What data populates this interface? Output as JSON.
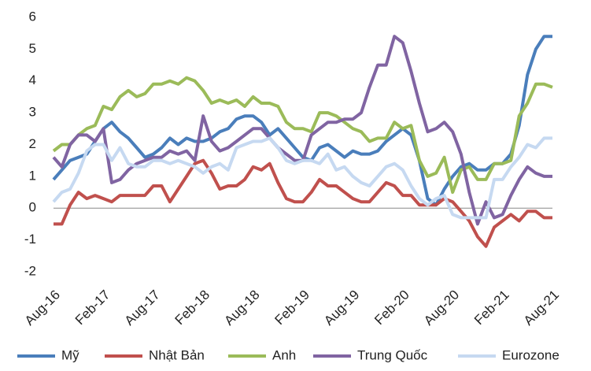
{
  "chart_data": {
    "type": "line",
    "categories": [
      "Aug-16",
      null,
      null,
      null,
      null,
      null,
      "Feb-17",
      null,
      null,
      null,
      null,
      null,
      "Aug-17",
      null,
      null,
      null,
      null,
      null,
      "Feb-18",
      null,
      null,
      null,
      null,
      null,
      "Aug-18",
      null,
      null,
      null,
      null,
      null,
      "Feb-19",
      null,
      null,
      null,
      null,
      null,
      "Aug-19",
      null,
      null,
      null,
      null,
      null,
      "Feb-20",
      null,
      null,
      null,
      null,
      null,
      "Aug-20",
      null,
      null,
      null,
      null,
      null,
      "Feb-21",
      null,
      null,
      null,
      null,
      null,
      "Aug-21"
    ],
    "ylim": [
      -2,
      6
    ],
    "yticks": [
      -2,
      -1,
      0,
      1,
      2,
      3,
      4,
      5,
      6
    ],
    "grid": false,
    "legend": "bottom",
    "series": [
      {
        "name": "Mỹ",
        "color": "#4a7ebb",
        "values": [
          0.9,
          1.2,
          1.5,
          1.6,
          1.7,
          2.1,
          2.5,
          2.7,
          2.4,
          2.2,
          1.9,
          1.6,
          1.7,
          1.9,
          2.2,
          2.0,
          2.2,
          2.1,
          2.1,
          2.2,
          2.4,
          2.5,
          2.8,
          2.9,
          2.9,
          2.7,
          2.3,
          2.5,
          2.2,
          1.9,
          1.6,
          1.5,
          1.9,
          2.0,
          1.8,
          1.6,
          1.8,
          1.7,
          1.7,
          1.8,
          2.1,
          2.3,
          2.5,
          2.3,
          1.5,
          0.3,
          0.1,
          0.6,
          1.0,
          1.3,
          1.4,
          1.2,
          1.2,
          1.4,
          1.4,
          1.7,
          2.6,
          4.2,
          5.0,
          5.4,
          5.4
        ]
      },
      {
        "name": "Nhật Bản",
        "color": "#c0504d",
        "values": [
          -0.5,
          -0.5,
          0.1,
          0.5,
          0.3,
          0.4,
          0.3,
          0.2,
          0.4,
          0.4,
          0.4,
          0.4,
          0.7,
          0.7,
          0.2,
          0.6,
          1.0,
          1.4,
          1.5,
          1.1,
          0.6,
          0.7,
          0.7,
          0.9,
          1.3,
          1.2,
          1.4,
          0.8,
          0.3,
          0.2,
          0.2,
          0.5,
          0.9,
          0.7,
          0.7,
          0.5,
          0.3,
          0.2,
          0.2,
          0.5,
          0.8,
          0.7,
          0.4,
          0.4,
          0.1,
          0.1,
          0.1,
          0.3,
          0.2,
          -0.1,
          -0.4,
          -0.9,
          -1.2,
          -0.6,
          -0.4,
          -0.2,
          -0.4,
          -0.1,
          -0.1,
          -0.3,
          -0.3
        ]
      },
      {
        "name": "Anh",
        "color": "#9bbb59",
        "values": [
          1.8,
          2.0,
          2.0,
          2.3,
          2.5,
          2.6,
          3.2,
          3.1,
          3.5,
          3.7,
          3.5,
          3.6,
          3.9,
          3.9,
          4.0,
          3.9,
          4.1,
          4.0,
          3.7,
          3.3,
          3.4,
          3.3,
          3.4,
          3.2,
          3.5,
          3.3,
          3.3,
          3.2,
          2.7,
          2.5,
          2.5,
          2.4,
          3.0,
          3.0,
          2.9,
          2.7,
          2.5,
          2.4,
          2.1,
          2.2,
          2.2,
          2.7,
          2.5,
          2.6,
          1.5,
          1.0,
          1.1,
          1.6,
          0.5,
          1.2,
          1.3,
          0.9,
          0.9,
          1.4,
          1.4,
          1.5,
          2.9,
          3.3,
          3.9,
          3.9,
          3.8
        ]
      },
      {
        "name": "Trung Quốc",
        "color": "#8064a2",
        "values": [
          1.6,
          1.3,
          2.0,
          2.3,
          2.3,
          2.1,
          2.5,
          0.8,
          0.9,
          1.2,
          1.4,
          1.5,
          1.6,
          1.6,
          1.8,
          1.7,
          1.8,
          1.5,
          2.9,
          2.1,
          1.8,
          1.9,
          2.1,
          2.3,
          2.5,
          2.5,
          2.2,
          1.9,
          1.7,
          1.5,
          1.5,
          2.3,
          2.5,
          2.7,
          2.7,
          2.8,
          2.8,
          3.0,
          3.8,
          4.5,
          4.5,
          5.4,
          5.2,
          4.3,
          3.3,
          2.4,
          2.5,
          2.7,
          2.4,
          1.7,
          0.5,
          -0.5,
          0.2,
          -0.3,
          -0.2,
          0.4,
          0.9,
          1.3,
          1.1,
          1.0,
          1.0
        ]
      },
      {
        "name": "Eurozone",
        "color": "#c6d9f1",
        "values": [
          0.2,
          0.5,
          0.6,
          1.1,
          1.8,
          2.0,
          2.0,
          1.5,
          1.9,
          1.4,
          1.3,
          1.3,
          1.5,
          1.5,
          1.4,
          1.5,
          1.4,
          1.3,
          1.1,
          1.3,
          1.4,
          1.2,
          1.9,
          2.0,
          2.1,
          2.1,
          2.2,
          1.9,
          1.5,
          1.4,
          1.5,
          1.5,
          1.4,
          1.7,
          1.2,
          1.3,
          1.0,
          0.8,
          0.7,
          1.0,
          1.3,
          1.4,
          1.2,
          0.7,
          0.3,
          0.1,
          0.3,
          0.4,
          -0.2,
          -0.3,
          -0.3,
          -0.3,
          -0.3,
          0.9,
          0.9,
          1.3,
          1.6,
          2.0,
          1.9,
          2.2,
          2.2
        ]
      }
    ]
  }
}
